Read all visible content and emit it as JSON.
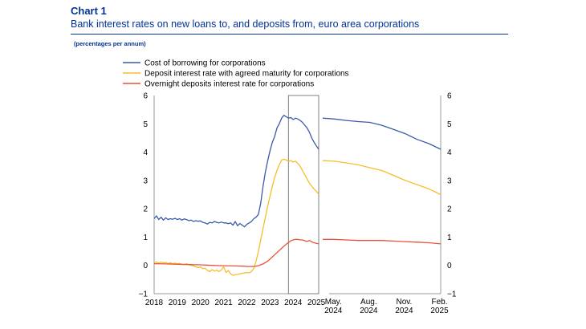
{
  "header": {
    "chart_label": "Chart 1",
    "title": "Bank interest rates on new loans to, and deposits from, euro area corporations",
    "unit_note": "(percentages per annum)"
  },
  "colors": {
    "borrowing": "#3B5BA9",
    "agreed": "#F6BE2A",
    "overnight": "#E9533A",
    "axis": "#999999",
    "title": "#003299"
  },
  "chart_data": [
    {
      "type": "line",
      "panel": "history",
      "title": "Bank interest rates on new loans to, and deposits from, euro area corporations",
      "ylabel": "(percentages per annum)",
      "ylim": [
        -1,
        6
      ],
      "yticks": [
        "−1",
        "0",
        "1",
        "2",
        "3",
        "4",
        "5",
        "6"
      ],
      "xlim": [
        2018.0,
        2025.1
      ],
      "xticks": [
        "2018",
        "2019",
        "2020",
        "2021",
        "2022",
        "2023",
        "2024",
        "2025"
      ],
      "highlight_window": [
        2023.9,
        2025.1
      ],
      "series": [
        {
          "name": "Cost of borrowing for corporations",
          "color_key": "borrowing",
          "x": [
            2018.0,
            2018.1,
            2018.2,
            2018.3,
            2018.4,
            2018.5,
            2018.6,
            2018.7,
            2018.8,
            2018.9,
            2019.0,
            2019.1,
            2019.2,
            2019.3,
            2019.4,
            2019.5,
            2019.6,
            2019.7,
            2019.8,
            2019.9,
            2020.0,
            2020.1,
            2020.2,
            2020.3,
            2020.4,
            2020.5,
            2020.6,
            2020.7,
            2020.8,
            2020.9,
            2021.0,
            2021.1,
            2021.2,
            2021.3,
            2021.4,
            2021.5,
            2021.6,
            2021.7,
            2021.8,
            2021.9,
            2022.0,
            2022.1,
            2022.2,
            2022.3,
            2022.4,
            2022.5,
            2022.6,
            2022.7,
            2022.8,
            2022.9,
            2023.0,
            2023.1,
            2023.2,
            2023.3,
            2023.4,
            2023.5,
            2023.6,
            2023.7,
            2023.8,
            2023.9,
            2024.0,
            2024.1,
            2024.2,
            2024.3,
            2024.4,
            2024.5,
            2024.6,
            2024.7,
            2024.8,
            2024.9,
            2025.0,
            2025.1
          ],
          "values": [
            1.65,
            1.75,
            1.62,
            1.7,
            1.6,
            1.68,
            1.62,
            1.65,
            1.63,
            1.66,
            1.62,
            1.65,
            1.6,
            1.64,
            1.62,
            1.58,
            1.6,
            1.55,
            1.58,
            1.56,
            1.57,
            1.52,
            1.5,
            1.46,
            1.52,
            1.5,
            1.55,
            1.52,
            1.5,
            1.53,
            1.5,
            1.5,
            1.47,
            1.5,
            1.42,
            1.55,
            1.4,
            1.48,
            1.42,
            1.36,
            1.45,
            1.5,
            1.55,
            1.65,
            1.7,
            1.8,
            2.2,
            2.8,
            3.3,
            3.7,
            4.05,
            4.35,
            4.55,
            4.85,
            5.0,
            5.2,
            5.3,
            5.25,
            5.2,
            5.22,
            5.15,
            5.2,
            5.17,
            5.12,
            5.05,
            4.95,
            4.85,
            4.7,
            4.5,
            4.35,
            4.22,
            4.1
          ]
        },
        {
          "name": "Deposit interest rate with agreed maturity for corporations",
          "color_key": "agreed",
          "x": [
            2018.0,
            2018.1,
            2018.2,
            2018.3,
            2018.4,
            2018.5,
            2018.6,
            2018.7,
            2018.8,
            2018.9,
            2019.0,
            2019.1,
            2019.2,
            2019.3,
            2019.4,
            2019.5,
            2019.6,
            2019.7,
            2019.8,
            2019.9,
            2020.0,
            2020.1,
            2020.2,
            2020.3,
            2020.4,
            2020.5,
            2020.6,
            2020.7,
            2020.8,
            2020.9,
            2021.0,
            2021.1,
            2021.2,
            2021.3,
            2021.4,
            2021.5,
            2021.6,
            2021.7,
            2021.8,
            2021.9,
            2022.0,
            2022.1,
            2022.2,
            2022.3,
            2022.4,
            2022.5,
            2022.6,
            2022.7,
            2022.8,
            2022.9,
            2023.0,
            2023.1,
            2023.2,
            2023.3,
            2023.4,
            2023.5,
            2023.6,
            2023.7,
            2023.8,
            2023.9,
            2024.0,
            2024.1,
            2024.2,
            2024.3,
            2024.4,
            2024.5,
            2024.6,
            2024.7,
            2024.8,
            2024.9,
            2025.0,
            2025.1
          ],
          "values": [
            0.1,
            0.12,
            0.08,
            0.11,
            0.09,
            0.1,
            0.07,
            0.09,
            0.06,
            0.08,
            0.05,
            0.07,
            0.04,
            0.03,
            0.06,
            0.02,
            0.0,
            -0.02,
            -0.05,
            -0.08,
            -0.05,
            -0.12,
            -0.1,
            -0.18,
            -0.22,
            -0.15,
            -0.2,
            -0.17,
            -0.22,
            -0.16,
            -0.05,
            -0.25,
            -0.18,
            -0.3,
            -0.35,
            -0.33,
            -0.32,
            -0.3,
            -0.28,
            -0.27,
            -0.25,
            -0.26,
            -0.22,
            -0.1,
            0.15,
            0.5,
            0.9,
            1.3,
            1.7,
            2.1,
            2.45,
            2.8,
            3.1,
            3.35,
            3.55,
            3.72,
            3.75,
            3.72,
            3.68,
            3.7,
            3.65,
            3.68,
            3.6,
            3.5,
            3.35,
            3.2,
            3.05,
            2.9,
            2.8,
            2.7,
            2.62,
            2.5
          ]
        },
        {
          "name": "Overnight deposits interest rate for corporations",
          "color_key": "overnight",
          "x": [
            2018.0,
            2018.5,
            2019.0,
            2019.5,
            2020.0,
            2020.5,
            2021.0,
            2021.5,
            2021.9,
            2022.0,
            2022.3,
            2022.5,
            2022.7,
            2022.9,
            2023.1,
            2023.3,
            2023.5,
            2023.7,
            2023.9,
            2024.0,
            2024.1,
            2024.2,
            2024.3,
            2024.4,
            2024.5,
            2024.6,
            2024.7,
            2024.8,
            2024.9,
            2025.0,
            2025.1
          ],
          "values": [
            0.06,
            0.05,
            0.04,
            0.03,
            0.02,
            0.0,
            -0.01,
            -0.02,
            -0.03,
            -0.04,
            -0.04,
            -0.01,
            0.05,
            0.15,
            0.3,
            0.45,
            0.6,
            0.75,
            0.87,
            0.9,
            0.92,
            0.92,
            0.9,
            0.9,
            0.87,
            0.85,
            0.88,
            0.83,
            0.8,
            0.78,
            0.76
          ]
        }
      ]
    },
    {
      "type": "line",
      "panel": "zoom",
      "ylim": [
        -1,
        6
      ],
      "yticks": [
        "−1",
        "0",
        "1",
        "2",
        "3",
        "4",
        "5",
        "6"
      ],
      "xlim": [
        0,
        10
      ],
      "xticks": [
        {
          "line1": "May.",
          "line2": "2024",
          "x": 0.9
        },
        {
          "line1": "Aug.",
          "line2": "2024",
          "x": 3.9
        },
        {
          "line1": "Nov.",
          "line2": "2024",
          "x": 6.9
        },
        {
          "line1": "Feb.",
          "line2": "2025",
          "x": 9.9
        }
      ],
      "series": [
        {
          "name": "Cost of borrowing for corporations",
          "color_key": "borrowing",
          "x": [
            0,
            1,
            2,
            3,
            4,
            5,
            6,
            7,
            8,
            9,
            10
          ],
          "values": [
            5.2,
            5.17,
            5.12,
            5.08,
            5.05,
            4.95,
            4.8,
            4.65,
            4.45,
            4.3,
            4.1
          ]
        },
        {
          "name": "Deposit interest rate with agreed maturity for corporations",
          "color_key": "agreed",
          "x": [
            0,
            1,
            2,
            3,
            4,
            5,
            6,
            7,
            8,
            9,
            10
          ],
          "values": [
            3.7,
            3.68,
            3.62,
            3.55,
            3.45,
            3.35,
            3.18,
            3.0,
            2.85,
            2.7,
            2.5
          ]
        },
        {
          "name": "Overnight deposits interest rate for corporations",
          "color_key": "overnight",
          "x": [
            0,
            1,
            2,
            3,
            4,
            5,
            6,
            7,
            8,
            9,
            10
          ],
          "values": [
            0.92,
            0.92,
            0.9,
            0.88,
            0.88,
            0.88,
            0.86,
            0.84,
            0.82,
            0.8,
            0.76
          ]
        }
      ]
    }
  ]
}
